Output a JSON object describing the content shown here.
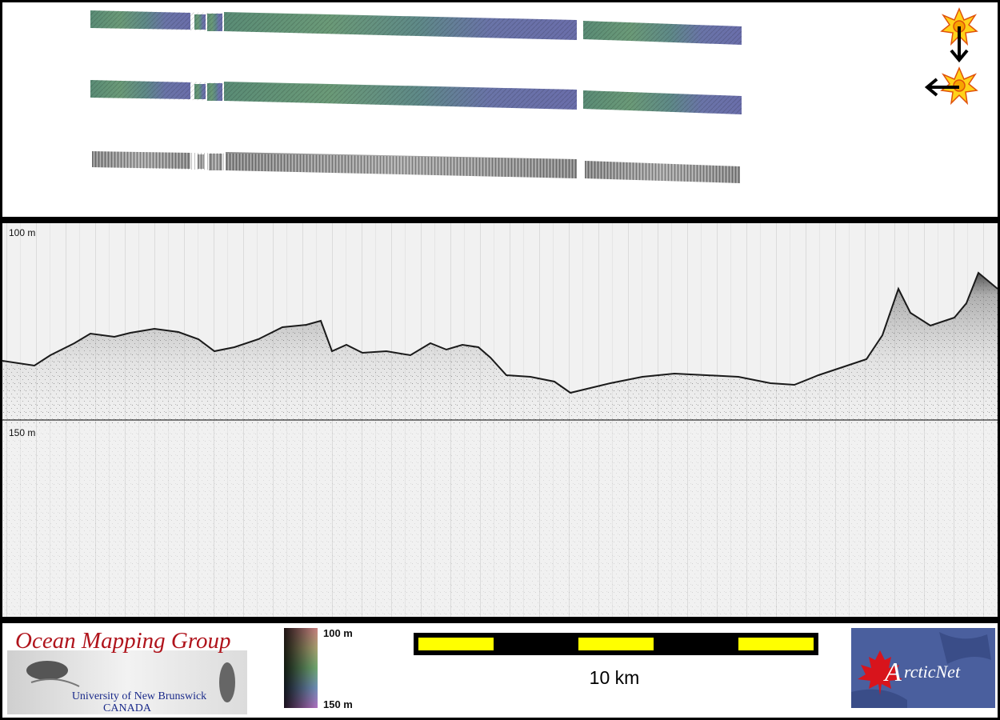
{
  "echogram": {
    "depth_top_label": "100 m",
    "depth_mid_label": "150 m"
  },
  "legend": {
    "org_name": "Ocean Mapping Group",
    "org_university": "University of New Brunswick",
    "org_country": "CANADA",
    "colorbar_top_label": "100 m",
    "colorbar_bottom_label": "150 m",
    "scale_label": "10 km",
    "partner_logo_text": "ArcticNet"
  },
  "colors": {
    "frame": "#000000",
    "scale_yellow": "#ffff00",
    "logo_red": "#b0141c",
    "arcticnet_blue": "#4a5f9e"
  },
  "icons": [
    "sun-illumination-icon",
    "arrow-down-icon",
    "arrow-left-icon",
    "maple-leaf-icon"
  ]
}
